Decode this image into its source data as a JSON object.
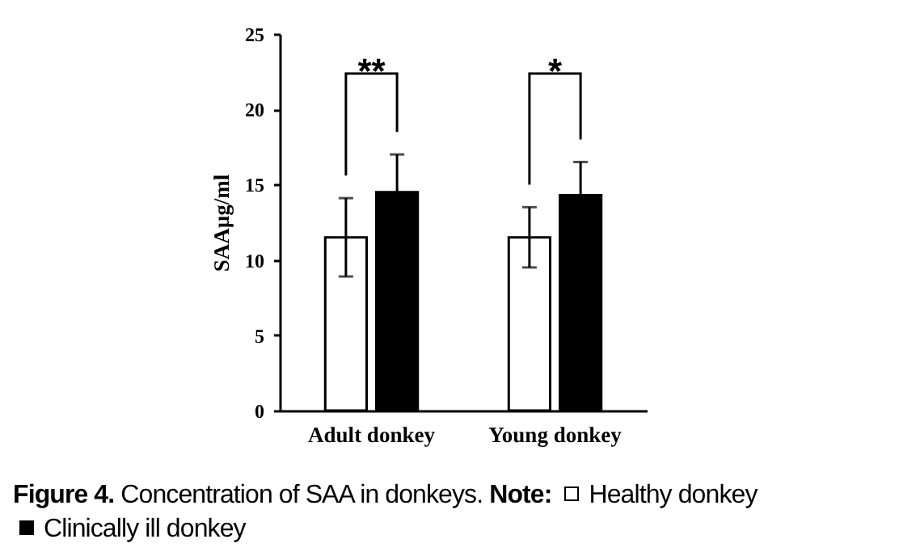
{
  "chart_data": {
    "type": "bar",
    "title": "Figure 4. Concentration of SAA in donkeys.",
    "ylabel": "SAAµg/ml",
    "legend_title": "Note:",
    "legend": "bottom",
    "categories": [
      "Adult donkey",
      "Young donkey"
    ],
    "series": [
      {
        "name": "Healthy donkey",
        "color": "#ffffff",
        "values": [
          11.5,
          11.5
        ],
        "errors": [
          2.6,
          2.0
        ]
      },
      {
        "name": "Clinically ill donkey",
        "color": "#000000",
        "values": [
          14.5,
          14.3
        ],
        "errors": [
          2.5,
          2.2
        ]
      }
    ],
    "ylim": [
      0,
      25
    ],
    "yticks": [
      0,
      5,
      10,
      15,
      20,
      25
    ],
    "annotations": [
      "**",
      "*"
    ]
  }
}
